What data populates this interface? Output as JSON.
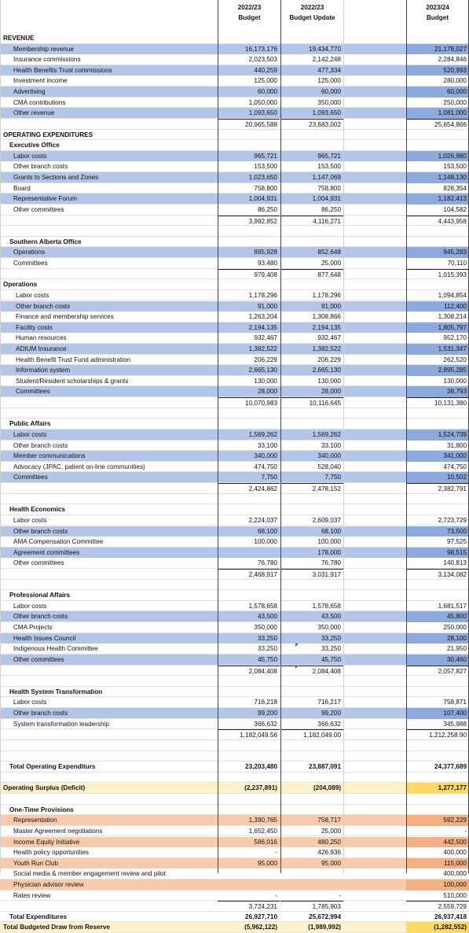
{
  "headers": [
    {
      "year": "2022/23",
      "label": "Budget"
    },
    {
      "year": "2022/23",
      "label": "Budget Update"
    },
    {
      "year": "2023/24",
      "label": "Budget"
    }
  ],
  "rows": [
    {
      "label": "REVENUE",
      "kind": "section",
      "vals": [
        "",
        "",
        ""
      ]
    },
    {
      "label": "Membership revenue",
      "kind": "item",
      "band": "blue",
      "vals": [
        "16,173,176",
        "19,434,770",
        "21,178,027"
      ]
    },
    {
      "label": "Insurance commissions",
      "kind": "item",
      "vals": [
        "2,023,503",
        "2,142,248",
        "2,284,846"
      ]
    },
    {
      "label": "Health Benefits Trust commissions",
      "kind": "item",
      "band": "blue",
      "vals": [
        "440,259",
        "477,334",
        "520,993"
      ]
    },
    {
      "label": "Investment income",
      "kind": "item",
      "vals": [
        "125,000",
        "125,000",
        "280,000"
      ]
    },
    {
      "label": "Advertising",
      "kind": "item",
      "band": "blue",
      "vals": [
        "60,000",
        "60,000",
        "60,000"
      ]
    },
    {
      "label": "CMA contributions",
      "kind": "item",
      "vals": [
        "1,050,000",
        "350,000",
        "250,000"
      ]
    },
    {
      "label": "Other revenue",
      "kind": "item",
      "band": "blue",
      "vals": [
        "1,093,650",
        "1,093,650",
        "1,081,000"
      ]
    },
    {
      "label": "",
      "kind": "total",
      "vals": [
        "20,965,588",
        "23,683,002",
        "25,654,866"
      ]
    },
    {
      "label": "OPERATING EXPENDITURES",
      "kind": "section",
      "vals": [
        "",
        "",
        ""
      ]
    },
    {
      "label": "Executive Office",
      "kind": "sub",
      "vals": [
        "",
        "",
        ""
      ]
    },
    {
      "label": "Labor costs",
      "kind": "item",
      "band": "blue",
      "vals": [
        "965,721",
        "965,721",
        "1,026,980"
      ]
    },
    {
      "label": "Other branch costs",
      "kind": "item",
      "vals": [
        "153,500",
        "153,500",
        "153,500"
      ]
    },
    {
      "label": "Grants to Sections and Zones",
      "kind": "item",
      "band": "blue",
      "vals": [
        "1,023,650",
        "1,147,069",
        "1,148,130"
      ]
    },
    {
      "label": "Board",
      "kind": "item",
      "vals": [
        "758,800",
        "758,800",
        "828,354"
      ]
    },
    {
      "label": "Representative Forum",
      "kind": "item",
      "band": "blue",
      "vals": [
        "1,004,931",
        "1,004,931",
        "1,182,413"
      ]
    },
    {
      "label": "Other committees",
      "kind": "item",
      "vals": [
        "86,250",
        "86,250",
        "104,582"
      ]
    },
    {
      "label": "",
      "kind": "total",
      "vals": [
        "3,992,852",
        "4,116,271",
        "4,443,958"
      ]
    },
    {
      "label": "",
      "kind": "blank",
      "vals": [
        "",
        "",
        ""
      ]
    },
    {
      "label": "Southern Alberta Office",
      "kind": "sub",
      "vals": [
        "",
        "",
        ""
      ]
    },
    {
      "label": "Operations",
      "kind": "item",
      "band": "blue",
      "vals": [
        "885,928",
        "852,648",
        "945,283"
      ]
    },
    {
      "label": "Committees",
      "kind": "item",
      "vals": [
        "93,480",
        "25,000",
        "70,110"
      ]
    },
    {
      "label": "",
      "kind": "total",
      "vals": [
        "979,408",
        "877,648",
        "1,015,393"
      ]
    },
    {
      "label": "Operations",
      "kind": "section",
      "vals": [
        "",
        "",
        ""
      ]
    },
    {
      "label": "Labor costs",
      "kind": "itemsm",
      "vals": [
        "1,178,296",
        "1,178,296",
        "1,094,854"
      ]
    },
    {
      "label": "Other branch costs",
      "kind": "itemsm",
      "band": "blue",
      "vals": [
        "91,000",
        "91,000",
        "112,400"
      ]
    },
    {
      "label": "Finance and membership services",
      "kind": "itemsm",
      "vals": [
        "1,263,204",
        "1,308,866",
        "1,308,214"
      ]
    },
    {
      "label": "Facility costs",
      "kind": "itemsm",
      "band": "blue",
      "vals": [
        "2,194,135",
        "2,194,135",
        "1,805,797"
      ]
    },
    {
      "label": "Human resources",
      "kind": "itemsm",
      "vals": [
        "932,467",
        "932,467",
        "952,170"
      ]
    },
    {
      "label": "ADIUM Insurance",
      "kind": "itemsm",
      "band": "blue",
      "vals": [
        "1,382,522",
        "1,382,522",
        "1,531,347"
      ]
    },
    {
      "label": "Health Benefit Trust Fund administration",
      "kind": "itemsm",
      "vals": [
        "206,229",
        "206,229",
        "262,520"
      ]
    },
    {
      "label": "Information system",
      "kind": "itemsm",
      "band": "blue",
      "vals": [
        "2,665,130",
        "2,665,130",
        "2,895,285"
      ]
    },
    {
      "label": "Student/Resident scholarships & grants",
      "kind": "itemsm",
      "vals": [
        "130,000",
        "130,000",
        "130,000"
      ]
    },
    {
      "label": "Committees",
      "kind": "itemsm",
      "band": "blue",
      "vals": [
        "28,000",
        "28,000",
        "38,793"
      ]
    },
    {
      "label": "",
      "kind": "total",
      "vals": [
        "10,070,983",
        "10,116,645",
        "10,131,380"
      ]
    },
    {
      "label": "",
      "kind": "blank",
      "vals": [
        "",
        "",
        ""
      ]
    },
    {
      "label": "Public Affairs",
      "kind": "sub",
      "vals": [
        "",
        "",
        ""
      ]
    },
    {
      "label": "Labor costs",
      "kind": "item",
      "band": "blue",
      "vals": [
        "1,569,262",
        "1,569,262",
        "1,524,739"
      ]
    },
    {
      "label": "Other branch costs",
      "kind": "item",
      "vals": [
        "33,100",
        "33,100",
        "31,800"
      ]
    },
    {
      "label": "Member communications",
      "kind": "item",
      "band": "blue",
      "vals": [
        "340,000",
        "340,000",
        "341,000"
      ]
    },
    {
      "label": "Advocacy (JPAC, patient on-line communities)",
      "kind": "item",
      "vals": [
        "474,750",
        "528,040",
        "474,750"
      ]
    },
    {
      "label": "Committees",
      "kind": "item",
      "band": "blue",
      "vals": [
        "7,750",
        "7,750",
        "10,502"
      ]
    },
    {
      "label": "",
      "kind": "total",
      "vals": [
        "2,424,862",
        "2,478,152",
        "2,382,791"
      ]
    },
    {
      "label": "",
      "kind": "blank",
      "vals": [
        "",
        "",
        ""
      ]
    },
    {
      "label": "Health Economics",
      "kind": "sub",
      "vals": [
        "",
        "",
        ""
      ]
    },
    {
      "label": "Labor costs",
      "kind": "item",
      "vals": [
        "2,224,037",
        "2,609,037",
        "2,723,729"
      ]
    },
    {
      "label": "Other branch costs",
      "kind": "item",
      "band": "blue",
      "vals": [
        "68,100",
        "68,100",
        "73,500"
      ]
    },
    {
      "label": "AMA Compensation Committee",
      "kind": "item",
      "vals": [
        "100,000",
        "100,000",
        "97,525"
      ]
    },
    {
      "label": "Agreement committees",
      "kind": "item",
      "band": "blue",
      "vals": [
        "",
        "178,000",
        "98,515"
      ]
    },
    {
      "label": "Other committees",
      "kind": "item",
      "vals": [
        "76,780",
        "76,780",
        "140,813"
      ]
    },
    {
      "label": "",
      "kind": "total",
      "vals": [
        "2,468,917",
        "3,031,917",
        "3,134,082"
      ]
    },
    {
      "label": "",
      "kind": "blank",
      "vals": [
        "",
        "",
        ""
      ]
    },
    {
      "label": "Professional Affairs",
      "kind": "sub",
      "vals": [
        "",
        "",
        ""
      ]
    },
    {
      "label": "Labor costs",
      "kind": "item",
      "vals": [
        "1,578,658",
        "1,578,658",
        "1,681,517"
      ]
    },
    {
      "label": "Other branch costs",
      "kind": "item",
      "band": "blue",
      "vals": [
        "43,500",
        "43,500",
        "45,800"
      ]
    },
    {
      "label": "CMA Projects",
      "kind": "item",
      "vals": [
        "350,000",
        "350,000",
        "250,000"
      ]
    },
    {
      "label": "Health Issues Council",
      "kind": "item",
      "band": "blue",
      "vals": [
        "33,250",
        "33,250",
        "28,100"
      ]
    },
    {
      "label": "Indigenous Health Committee",
      "kind": "item",
      "vals": [
        "33,250",
        "33,250",
        "21,950"
      ]
    },
    {
      "label": "Other committees",
      "kind": "item",
      "band": "blue",
      "vals": [
        "45,750",
        "45,750",
        "30,460"
      ]
    },
    {
      "label": "",
      "kind": "total",
      "vals": [
        "2,084,408",
        "2,084,408",
        "2,057,827"
      ]
    },
    {
      "label": "",
      "kind": "blank",
      "vals": [
        "",
        "",
        ""
      ]
    },
    {
      "label": "Health System Transformation",
      "kind": "sub",
      "vals": [
        "",
        "",
        ""
      ]
    },
    {
      "label": "Labor costs",
      "kind": "item",
      "vals": [
        "716,218",
        "716,217",
        "758,871"
      ]
    },
    {
      "label": "Other branch costs",
      "kind": "item",
      "band": "blue",
      "vals": [
        "99,200",
        "99,200",
        "107,400"
      ]
    },
    {
      "label": "System transformation leadership",
      "kind": "item",
      "vals": [
        "366,632",
        "366,632",
        "345,988"
      ]
    },
    {
      "label": "",
      "kind": "total",
      "vals": [
        "1,182,049.56",
        "1,182,049.00",
        "1,212,258.90"
      ]
    },
    {
      "label": "",
      "kind": "blank",
      "vals": [
        "",
        "",
        ""
      ]
    },
    {
      "label": "",
      "kind": "blank",
      "vals": [
        "",
        "",
        ""
      ]
    },
    {
      "label": "Total Operating Expenditurs",
      "kind": "subbold",
      "vals": [
        "23,203,480",
        "23,887,091",
        "24,377,689"
      ]
    },
    {
      "label": "",
      "kind": "blank",
      "vals": [
        "",
        "",
        ""
      ]
    },
    {
      "label": "Operating Surplus (Deficit)",
      "kind": "section",
      "band": "yellow",
      "vals": [
        "(2,237,891)",
        "(204,089)",
        "1,277,177"
      ]
    },
    {
      "label": "",
      "kind": "blank",
      "vals": [
        "",
        "",
        ""
      ]
    },
    {
      "label": "One-Time Provisions",
      "kind": "sub",
      "vals": [
        "",
        "",
        ""
      ]
    },
    {
      "label": "Representation",
      "kind": "item",
      "band": "peach",
      "vals": [
        "1,390,765",
        "758,717",
        "592,229"
      ]
    },
    {
      "label": "Master Agreement negotiations",
      "kind": "item",
      "vals": [
        "1,652,450",
        "25,000",
        "-"
      ]
    },
    {
      "label": "Income Equity Initiative",
      "kind": "item",
      "band": "peach",
      "vals": [
        "586,016",
        "480,250",
        "442,500"
      ]
    },
    {
      "label": "Health policy opportunities",
      "kind": "item",
      "vals": [
        "-",
        "426,936",
        "400,000"
      ]
    },
    {
      "label": "Youth Run Club",
      "kind": "item",
      "band": "peach",
      "vals": [
        "95,000",
        "95,000",
        "115,000"
      ]
    },
    {
      "label": "Social media & member engagement review and pilot",
      "kind": "item",
      "vals": [
        "",
        "",
        "400,000"
      ]
    },
    {
      "label": "Physician advisor review",
      "kind": "item",
      "band": "peach",
      "vals": [
        "",
        "",
        "100,000"
      ]
    },
    {
      "label": "Rates review",
      "kind": "item",
      "vals": [
        "-",
        "-",
        "510,000"
      ]
    },
    {
      "label": "",
      "kind": "total",
      "vals": [
        "3,724,231",
        "1,785,903",
        "2,559,729"
      ]
    },
    {
      "label": "Total Expenditures",
      "kind": "subbold",
      "vals": [
        "26,927,710",
        "25,672,994",
        "26,937,418"
      ]
    },
    {
      "label": "Total Budgeted Draw from Reserve",
      "kind": "section",
      "band": "yellow",
      "vals": [
        "(5,962,122)",
        "(1,989,992)",
        "(1,282,552)"
      ]
    }
  ]
}
